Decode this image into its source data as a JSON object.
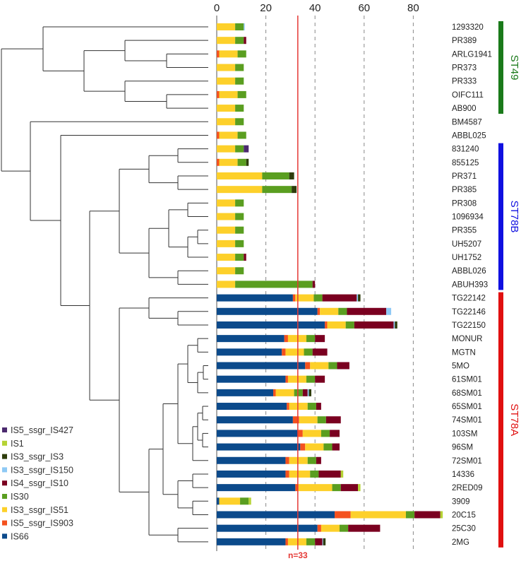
{
  "chart_data": {
    "type": "bar",
    "orientation": "horizontal-stacked",
    "xlim": [
      0,
      95
    ],
    "xticks": [
      0,
      20,
      40,
      60,
      80
    ],
    "grid": "dashed vertical",
    "reference_line": {
      "value": 33,
      "label": "n=33",
      "color": "#e53935"
    },
    "legend_placement": "bottom-left",
    "series": [
      {
        "name": "IS66",
        "color": "#0b4a8b"
      },
      {
        "name": "IS5_ssgr_IS903",
        "color": "#f4511e"
      },
      {
        "name": "IS3_ssgr_IS51",
        "color": "#fdd02a"
      },
      {
        "name": "IS30",
        "color": "#5a9e20"
      },
      {
        "name": "IS4_ssgr_IS10",
        "color": "#7a0020"
      },
      {
        "name": "IS3_ssgr_IS150",
        "color": "#8ec9f5"
      },
      {
        "name": "IS3_ssgr_IS3",
        "color": "#2e3d0c"
      },
      {
        "name": "IS1",
        "color": "#b5d334"
      },
      {
        "name": "IS5_ssgr_IS427",
        "color": "#4b2a6e"
      }
    ],
    "legend_order": [
      "IS5_ssgr_IS427",
      "IS1",
      "IS3_ssgr_IS3",
      "IS3_ssgr_IS150",
      "IS4_ssgr_IS10",
      "IS30",
      "IS3_ssgr_IS51",
      "IS5_ssgr_IS903",
      "IS66"
    ],
    "rows": [
      {
        "label": "1293320",
        "values": [
          0,
          0,
          7.5,
          3.5,
          0,
          0.4,
          0,
          0,
          0
        ]
      },
      {
        "label": "PR389",
        "values": [
          0,
          0,
          7.5,
          3.5,
          1,
          0,
          0,
          0,
          0
        ]
      },
      {
        "label": "ARLG1941",
        "values": [
          0,
          1,
          7.5,
          3.5,
          0,
          0,
          0,
          0,
          0
        ]
      },
      {
        "label": "PR373",
        "values": [
          0,
          0,
          7.5,
          3.5,
          0,
          0,
          0,
          0,
          0
        ]
      },
      {
        "label": "PR333",
        "values": [
          0,
          0,
          7.5,
          3.5,
          0,
          0,
          0,
          0,
          0
        ]
      },
      {
        "label": "OIFC111",
        "values": [
          0,
          1,
          7.5,
          3.5,
          0,
          0,
          0,
          0,
          0
        ]
      },
      {
        "label": "AB900",
        "values": [
          0,
          0,
          7.5,
          3.5,
          0,
          0,
          0,
          0,
          0
        ]
      },
      {
        "label": "BM4587",
        "values": [
          0,
          0,
          7.5,
          3.5,
          0,
          0,
          0,
          0,
          0
        ]
      },
      {
        "label": "ABBL025",
        "values": [
          0,
          1,
          7.5,
          3.5,
          0,
          0,
          0,
          0,
          0
        ]
      },
      {
        "label": "831240",
        "values": [
          0,
          0,
          7.5,
          3.5,
          0,
          0,
          0,
          0,
          2
        ]
      },
      {
        "label": "855125",
        "values": [
          0,
          1,
          7.5,
          3.5,
          0,
          0,
          1,
          0,
          0
        ]
      },
      {
        "label": "PR371",
        "values": [
          0,
          0,
          18.5,
          11,
          0,
          0,
          2,
          0,
          0
        ]
      },
      {
        "label": "PR385",
        "values": [
          0,
          0,
          18.5,
          12,
          0,
          0,
          2,
          0,
          0
        ]
      },
      {
        "label": "PR308",
        "values": [
          0,
          0,
          7.5,
          3.5,
          0,
          0,
          0,
          0,
          0
        ]
      },
      {
        "label": "1096934",
        "values": [
          0,
          0,
          7.5,
          3.5,
          0,
          0,
          0,
          0,
          0
        ]
      },
      {
        "label": "PR355",
        "values": [
          0,
          0,
          7.5,
          3.5,
          0,
          0,
          0,
          0,
          0
        ]
      },
      {
        "label": "UH5207",
        "values": [
          0,
          0,
          7.5,
          3.5,
          0,
          0,
          0,
          0,
          0
        ]
      },
      {
        "label": "UH1752",
        "values": [
          0,
          0,
          7.5,
          3.5,
          1,
          0,
          0,
          0,
          0
        ]
      },
      {
        "label": "ABBL026",
        "values": [
          0,
          0,
          7.5,
          3.5,
          0,
          0,
          0,
          0,
          0
        ]
      },
      {
        "label": "ABUH393",
        "values": [
          0,
          0,
          7.5,
          31.5,
          1,
          0,
          0,
          0,
          0
        ]
      },
      {
        "label": "TG22142",
        "values": [
          31,
          1,
          7.5,
          3.5,
          14,
          0.5,
          1,
          0,
          0
        ]
      },
      {
        "label": "TG22146",
        "values": [
          41,
          1,
          7.5,
          3.5,
          16,
          2,
          0,
          0,
          0
        ]
      },
      {
        "label": "TG22150",
        "values": [
          44,
          1,
          7.5,
          3.5,
          16,
          0.5,
          1,
          0,
          0
        ]
      },
      {
        "label": "MONUR",
        "values": [
          27.5,
          1.5,
          7.5,
          3.5,
          4,
          0,
          0,
          0,
          0
        ]
      },
      {
        "label": "MGTN",
        "values": [
          26.5,
          1.5,
          7.5,
          3.5,
          6,
          0,
          0,
          0,
          0
        ]
      },
      {
        "label": "5MO",
        "values": [
          36,
          2,
          7.5,
          3.5,
          5,
          0,
          0,
          0,
          0
        ]
      },
      {
        "label": "61SM01",
        "values": [
          28,
          1,
          7.5,
          3.5,
          4,
          0,
          0,
          0,
          0
        ]
      },
      {
        "label": "68SM01",
        "values": [
          23,
          1,
          7.5,
          3.5,
          2,
          0.5,
          1,
          0,
          0
        ]
      },
      {
        "label": "65SM01",
        "values": [
          28.5,
          1,
          7.5,
          3.5,
          2,
          0,
          0,
          0,
          0
        ]
      },
      {
        "label": "74SM01",
        "values": [
          31,
          2.5,
          7.5,
          3.5,
          6,
          0,
          0,
          0,
          0
        ]
      },
      {
        "label": "103SM",
        "values": [
          33,
          2,
          7.5,
          3.5,
          4,
          0,
          0,
          0,
          0
        ]
      },
      {
        "label": "96SM",
        "values": [
          34,
          2,
          7.5,
          3.5,
          3,
          0,
          0,
          0,
          0
        ]
      },
      {
        "label": "72SM01",
        "values": [
          28,
          1.5,
          7.5,
          3.5,
          2,
          0,
          0,
          0,
          0
        ]
      },
      {
        "label": "14336",
        "values": [
          28,
          1.5,
          8.5,
          3.5,
          9,
          0,
          0,
          1,
          0
        ]
      },
      {
        "label": "2RED09",
        "values": [
          32,
          1,
          14,
          3.5,
          7,
          0,
          0,
          1,
          0
        ]
      },
      {
        "label": "3909",
        "values": [
          1,
          0,
          8.5,
          3.5,
          0,
          0,
          0,
          1,
          0
        ]
      },
      {
        "label": "20C15",
        "values": [
          48,
          6.5,
          22.5,
          3.5,
          10.5,
          0,
          0,
          1,
          0
        ]
      },
      {
        "label": "25C30",
        "values": [
          41,
          1.5,
          7.5,
          3.5,
          13,
          0,
          0,
          0,
          0
        ]
      },
      {
        "label": "2MG",
        "values": [
          28,
          1,
          7.5,
          3.5,
          3,
          0.3,
          1,
          0,
          0
        ]
      }
    ],
    "clades": [
      {
        "label": "ST49",
        "color": "#1a7a1a",
        "first": 0,
        "last": 6
      },
      {
        "label": "ST78B",
        "color": "#1010e0",
        "first": 9,
        "last": 19
      },
      {
        "label": "ST78A",
        "color": "#e01010",
        "first": 20,
        "last": 38
      }
    ]
  }
}
